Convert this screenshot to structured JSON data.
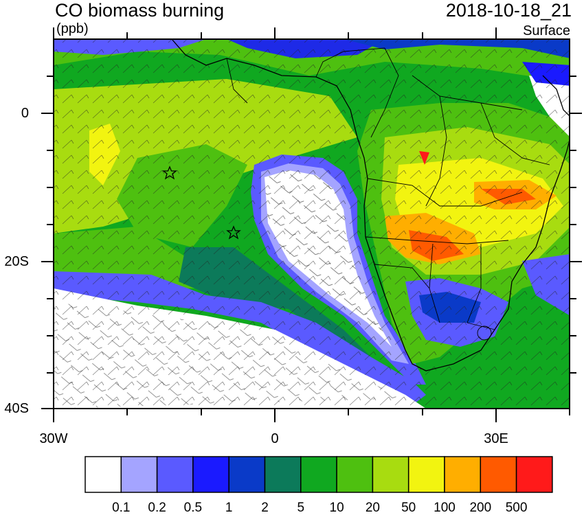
{
  "header": {
    "title": "CO biomass burning",
    "units": "(ppb)",
    "datetime": "2018-10-18_21",
    "level": "Surface"
  },
  "axes": {
    "y_ticks": [
      "0",
      "20S",
      "40S"
    ],
    "x_ticks": [
      "30W",
      "0",
      "30E"
    ]
  },
  "colorbar": {
    "colors": [
      "#ffffff",
      "#a4a4ff",
      "#5a5aff",
      "#1a1aff",
      "#0a3ac8",
      "#0c7a5a",
      "#10a820",
      "#4ec010",
      "#a8dc10",
      "#f2f410",
      "#ffae00",
      "#ff5a00",
      "#ff1a1a"
    ],
    "labels": [
      "0.1",
      "0.2",
      "0.5",
      "1",
      "2",
      "5",
      "10",
      "20",
      "50",
      "100",
      "200",
      "500"
    ]
  },
  "map": {
    "projection": "lat-lon",
    "lon_range": [
      -30,
      40
    ],
    "lat_range": [
      -40,
      10
    ],
    "features": [
      "coastlines",
      "country borders",
      "wind barbs"
    ],
    "markers": [
      {
        "type": "star",
        "lon": -14.5,
        "lat": -8
      },
      {
        "type": "star",
        "lon": -5.5,
        "lat": -16
      }
    ]
  }
}
